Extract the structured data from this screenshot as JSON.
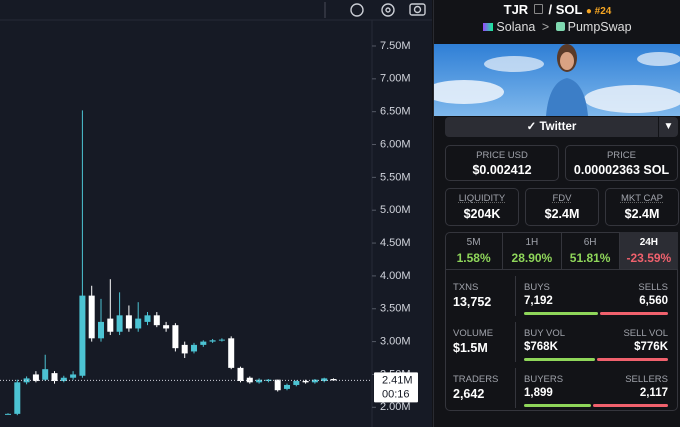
{
  "chart_data": {
    "type": "candlestick",
    "open": [
      1.9,
      1.9,
      2.38,
      2.5,
      2.42,
      2.52,
      2.4,
      2.45,
      2.48,
      3.7,
      3.05,
      3.35,
      3.15,
      3.4,
      3.2,
      3.3,
      3.4,
      3.25,
      3.25,
      2.95,
      2.85,
      2.95,
      3.0,
      3.02,
      3.05,
      2.6,
      2.45,
      2.38,
      2.4,
      2.42,
      2.28,
      2.34,
      2.4,
      2.38,
      2.4,
      2.43
    ],
    "high": [
      1.91,
      2.42,
      2.47,
      2.55,
      2.8,
      2.55,
      2.48,
      2.55,
      6.52,
      3.85,
      3.65,
      3.95,
      3.75,
      3.55,
      3.6,
      3.45,
      3.45,
      3.3,
      3.28,
      3.0,
      2.98,
      3.02,
      3.04,
      3.05,
      3.08,
      2.62,
      2.47,
      2.44,
      2.43,
      2.42,
      2.36,
      2.41,
      2.42,
      2.43,
      2.45,
      2.44
    ],
    "low": [
      1.89,
      1.88,
      2.35,
      2.38,
      2.4,
      2.36,
      2.38,
      2.42,
      2.45,
      3.0,
      3.0,
      3.1,
      3.1,
      3.15,
      3.15,
      3.25,
      3.22,
      3.15,
      2.85,
      2.75,
      2.82,
      2.92,
      2.98,
      3.0,
      2.58,
      2.38,
      2.36,
      2.36,
      2.38,
      2.24,
      2.26,
      2.32,
      2.36,
      2.36,
      2.38,
      2.4
    ],
    "close": [
      1.9,
      2.38,
      2.44,
      2.4,
      2.58,
      2.4,
      2.45,
      2.5,
      3.7,
      3.05,
      3.3,
      3.15,
      3.4,
      3.2,
      3.35,
      3.4,
      3.25,
      3.2,
      2.9,
      2.82,
      2.95,
      3.0,
      3.02,
      3.03,
      2.6,
      2.4,
      2.38,
      2.42,
      2.42,
      2.26,
      2.34,
      2.4,
      2.38,
      2.42,
      2.44,
      2.41
    ],
    "up_color": "#4cc3d3",
    "down_color": "#ffffff",
    "ylim": [
      1.7,
      8.2
    ],
    "yticks": [
      {
        "value": 2.0,
        "label": "2.00M"
      },
      {
        "value": 2.5,
        "label": "2.50M"
      },
      {
        "value": 3.0,
        "label": "3.00M"
      },
      {
        "value": 3.5,
        "label": "3.50M"
      },
      {
        "value": 4.0,
        "label": "4.00M"
      },
      {
        "value": 4.5,
        "label": "4.50M"
      },
      {
        "value": 5.0,
        "label": "5.00M"
      },
      {
        "value": 5.5,
        "label": "5.50M"
      },
      {
        "value": 6.0,
        "label": "6.00M"
      },
      {
        "value": 6.5,
        "label": "6.50M"
      },
      {
        "value": 7.0,
        "label": "7.00M"
      },
      {
        "value": 7.5,
        "label": "7.50M"
      }
    ],
    "last_price_label": "2.41M",
    "countdown": "00:16"
  },
  "header": {
    "base": "TJR",
    "separator": "/",
    "quote": "SOL",
    "rank": "#24",
    "chain": "Solana",
    "arrow": ">",
    "dex": "PumpSwap"
  },
  "twitter": "Twitter",
  "prices": [
    {
      "label": "PRICE USD",
      "value": "$0.002412"
    },
    {
      "label": "PRICE",
      "value": "0.00002363 SOL"
    }
  ],
  "metrics": [
    {
      "label": "LIQUIDITY",
      "value": "$204K"
    },
    {
      "label": "FDV",
      "value": "$2.4M"
    },
    {
      "label": "MKT CAP",
      "value": "$2.4M"
    }
  ],
  "timeframes": [
    {
      "label": "5M",
      "change": "1.58%"
    },
    {
      "label": "1H",
      "change": "28.90%"
    },
    {
      "label": "6H",
      "change": "51.81%"
    },
    {
      "label": "24H",
      "change": "-23.59%"
    }
  ],
  "stats": [
    {
      "label": "TXNS",
      "value": "13,752",
      "left_label": "BUYS",
      "left": "7,192",
      "right_label": "SELLS",
      "right": "6,560"
    },
    {
      "label": "VOLUME",
      "value": "$1.5M",
      "left_label": "BUY VOL",
      "left": "$768K",
      "right_label": "SELL VOL",
      "right": "$776K"
    },
    {
      "label": "TRADERS",
      "value": "2,642",
      "left_label": "BUYERS",
      "left": "1,899",
      "right_label": "SELLERS",
      "right": "2,117"
    }
  ]
}
